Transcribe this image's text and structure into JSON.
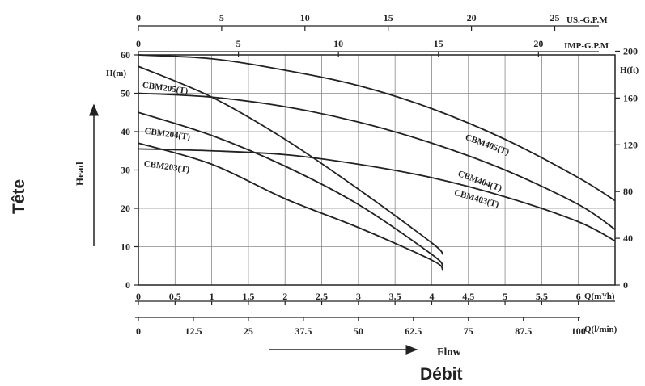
{
  "labels": {
    "tete": "Tête",
    "debit": "Débit",
    "head": "Head",
    "flow": "Flow",
    "us_gpm": "US.-G.P.M",
    "imp_gpm": "IMP-G.P.M",
    "h_m": "H(m)",
    "h_ft": "H(ft)",
    "q_m3h": "Q(m³/h)",
    "q_lmin": "Q(l/min)"
  },
  "chart_data": {
    "type": "line",
    "x_axis": {
      "label": "Q(m³/h)",
      "range": [
        0,
        6.5
      ],
      "ticks": [
        "0",
        "0.5",
        "1",
        "1.5",
        "2",
        "2.5",
        "3",
        "3.5",
        "4",
        "4.5",
        "5",
        "5.5",
        "6"
      ]
    },
    "y_axis_left": {
      "label": "H(m)",
      "range": [
        0,
        60
      ],
      "ticks": [
        "0",
        "10",
        "20",
        "30",
        "40",
        "50",
        "60"
      ]
    },
    "y_axis_right": {
      "label": "H(ft)",
      "ticks": [
        "0",
        "40",
        "80",
        "120",
        "160",
        "200"
      ]
    },
    "x_axis_lmin": {
      "label": "Q(l/min)",
      "ticks": [
        "0",
        "12.5",
        "25",
        "37.5",
        "50",
        "62.5",
        "75",
        "87.5",
        "100"
      ]
    },
    "x_axis_us_gpm": {
      "label": "US.-G.P.M",
      "ticks": [
        "0",
        "5",
        "10",
        "15",
        "20",
        "25"
      ]
    },
    "x_axis_imp_gpm": {
      "label": "IMP-G.P.M",
      "ticks": [
        "0",
        "5",
        "10",
        "15",
        "20"
      ]
    },
    "grid": true,
    "series": [
      {
        "name": "CBM205(T)",
        "x": [
          0,
          1,
          2,
          3,
          4,
          4.15
        ],
        "y": [
          57,
          49,
          38,
          25,
          11,
          8
        ]
      },
      {
        "name": "CBM204(T)",
        "x": [
          0,
          1,
          2,
          3,
          4,
          4.15
        ],
        "y": [
          45,
          39,
          31,
          21,
          8,
          5
        ]
      },
      {
        "name": "CBM203(T)",
        "x": [
          0,
          1,
          2,
          3,
          4,
          4.15
        ],
        "y": [
          37,
          31.5,
          22.5,
          15,
          6.5,
          4
        ]
      },
      {
        "name": "CBM405(T)",
        "x": [
          0,
          1,
          2,
          3,
          4,
          5,
          6,
          6.5
        ],
        "y": [
          60,
          59,
          56,
          52,
          46,
          38,
          28,
          22
        ]
      },
      {
        "name": "CBM404(T)",
        "x": [
          0,
          1,
          2,
          3,
          4,
          5,
          6,
          6.5
        ],
        "y": [
          50,
          49,
          46.5,
          42.5,
          37,
          30,
          21,
          14.5
        ]
      },
      {
        "name": "CBM403(T)",
        "x": [
          0,
          1,
          2,
          3,
          4,
          5,
          6,
          6.5
        ],
        "y": [
          35.5,
          35,
          34,
          31.5,
          28,
          23,
          16.5,
          11.5
        ]
      }
    ]
  }
}
